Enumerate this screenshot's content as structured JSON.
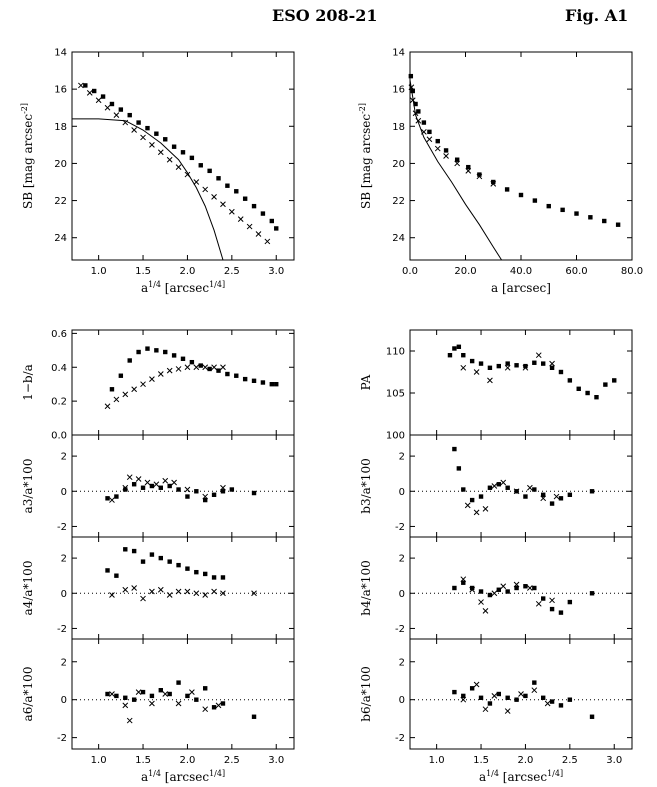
{
  "header": {
    "title": "ESO 208-21",
    "figure_label": "Fig. A1"
  },
  "chart_data": [
    {
      "id": "sb_vs_a14",
      "type": "scatter",
      "title": "",
      "xlabel": "a^1/4 [arcsec^1/4]",
      "ylabel": "SB [mag arcsec^-2]",
      "xlim": [
        0.7,
        3.2
      ],
      "ylim": [
        25.2,
        14
      ],
      "xticks": [
        "1.0",
        "1.5",
        "2.0",
        "2.5",
        "3.0"
      ],
      "yticks": [
        "14",
        "16",
        "18",
        "20",
        "22",
        "24"
      ],
      "series": [
        {
          "marker": "square",
          "x": [
            0.85,
            0.95,
            1.05,
            1.15,
            1.25,
            1.35,
            1.45,
            1.55,
            1.65,
            1.75,
            1.85,
            1.95,
            2.05,
            2.15,
            2.25,
            2.35,
            2.45,
            2.55,
            2.65,
            2.75,
            2.85,
            2.95,
            3.0
          ],
          "y": [
            15.8,
            16.1,
            16.4,
            16.8,
            17.1,
            17.4,
            17.8,
            18.1,
            18.4,
            18.7,
            19.1,
            19.4,
            19.7,
            20.1,
            20.4,
            20.8,
            21.2,
            21.5,
            21.9,
            22.3,
            22.7,
            23.1,
            23.5
          ]
        },
        {
          "marker": "cross",
          "x": [
            0.8,
            0.9,
            1.0,
            1.1,
            1.2,
            1.3,
            1.4,
            1.5,
            1.6,
            1.7,
            1.8,
            1.9,
            2.0,
            2.1,
            2.2,
            2.3,
            2.4,
            2.5,
            2.6,
            2.7,
            2.8,
            2.9
          ],
          "y": [
            15.8,
            16.2,
            16.6,
            17.0,
            17.4,
            17.8,
            18.2,
            18.6,
            19.0,
            19.4,
            19.8,
            20.2,
            20.6,
            21.0,
            21.4,
            21.8,
            22.2,
            22.6,
            23.0,
            23.4,
            23.8,
            24.2
          ]
        },
        {
          "marker": "line",
          "x": [
            0.7,
            1.0,
            1.3,
            1.5,
            1.7,
            1.9,
            2.0,
            2.1,
            2.2,
            2.3,
            2.4
          ],
          "y": [
            17.6,
            17.6,
            17.7,
            18.2,
            18.9,
            19.8,
            20.5,
            21.3,
            22.3,
            23.6,
            25.2
          ]
        }
      ]
    },
    {
      "id": "sb_vs_a",
      "type": "scatter",
      "title": "",
      "xlabel": "a [arcsec]",
      "ylabel": "SB [mag arcsec^-2]",
      "xlim": [
        0,
        80
      ],
      "ylim": [
        25.2,
        14
      ],
      "xticks": [
        "0.0",
        "20.0",
        "40.0",
        "60.0",
        "80.0"
      ],
      "yticks": [
        "14",
        "16",
        "18",
        "20",
        "22",
        "24"
      ],
      "series": [
        {
          "marker": "square",
          "x": [
            0.3,
            1,
            2,
            3,
            5,
            7,
            10,
            13,
            17,
            21,
            25,
            30,
            35,
            40,
            45,
            50,
            55,
            60,
            65,
            70,
            75
          ],
          "y": [
            15.3,
            16.1,
            16.8,
            17.2,
            17.8,
            18.3,
            18.8,
            19.3,
            19.8,
            20.2,
            20.6,
            21.0,
            21.4,
            21.7,
            22.0,
            22.3,
            22.5,
            22.7,
            22.9,
            23.1,
            23.3
          ]
        },
        {
          "marker": "cross",
          "x": [
            0.5,
            1,
            2,
            3,
            5,
            7,
            10,
            13,
            17,
            21,
            25,
            30
          ],
          "y": [
            15.9,
            16.6,
            17.3,
            17.7,
            18.3,
            18.7,
            19.2,
            19.6,
            20.0,
            20.4,
            20.7,
            21.1
          ]
        },
        {
          "marker": "line",
          "x": [
            0,
            2,
            5,
            10,
            15,
            20,
            25,
            30,
            33
          ],
          "y": [
            15.5,
            17.4,
            18.6,
            19.9,
            21.0,
            22.2,
            23.3,
            24.5,
            25.2
          ]
        }
      ]
    },
    {
      "id": "ellipticity",
      "type": "scatter",
      "title": "",
      "xlabel": "",
      "ylabel": "1−b/a",
      "xlim": [
        0.7,
        3.2
      ],
      "ylim": [
        0,
        0.62
      ],
      "yticks": [
        "0.0",
        "0.2",
        "0.4",
        "0.6"
      ],
      "series": [
        {
          "marker": "square",
          "x": [
            1.15,
            1.25,
            1.35,
            1.45,
            1.55,
            1.65,
            1.75,
            1.85,
            1.95,
            2.05,
            2.15,
            2.25,
            2.35,
            2.45,
            2.55,
            2.65,
            2.75,
            2.85,
            2.95,
            3.0
          ],
          "y": [
            0.27,
            0.35,
            0.44,
            0.49,
            0.51,
            0.5,
            0.49,
            0.47,
            0.45,
            0.43,
            0.41,
            0.39,
            0.38,
            0.36,
            0.35,
            0.33,
            0.32,
            0.31,
            0.3,
            0.3
          ]
        },
        {
          "marker": "cross",
          "x": [
            1.1,
            1.2,
            1.3,
            1.4,
            1.5,
            1.6,
            1.7,
            1.8,
            1.9,
            2.0,
            2.1,
            2.2,
            2.3,
            2.4
          ],
          "y": [
            0.17,
            0.21,
            0.24,
            0.27,
            0.3,
            0.33,
            0.36,
            0.38,
            0.39,
            0.4,
            0.4,
            0.4,
            0.4,
            0.4
          ]
        }
      ]
    },
    {
      "id": "pa",
      "type": "scatter",
      "title": "",
      "xlabel": "",
      "ylabel": "PA",
      "xlim": [
        0.7,
        3.2
      ],
      "ylim": [
        100,
        112.5
      ],
      "yticks": [
        "100",
        "105",
        "110"
      ],
      "series": [
        {
          "marker": "square",
          "x": [
            1.15,
            1.2,
            1.25,
            1.3,
            1.4,
            1.5,
            1.6,
            1.7,
            1.8,
            1.9,
            2.0,
            2.1,
            2.2,
            2.3,
            2.4,
            2.5,
            2.6,
            2.7,
            2.8,
            2.9,
            3.0
          ],
          "y": [
            109.5,
            110.3,
            110.5,
            109.5,
            108.8,
            108.5,
            108.0,
            108.2,
            108.5,
            108.3,
            108.2,
            108.6,
            108.5,
            108.0,
            107.5,
            106.5,
            105.5,
            105.0,
            104.5,
            106.0,
            106.5
          ]
        },
        {
          "marker": "cross",
          "x": [
            1.3,
            1.45,
            1.6,
            1.8,
            2.0,
            2.15,
            2.3
          ],
          "y": [
            108.0,
            107.5,
            106.5,
            108.0,
            108.0,
            109.5,
            108.5
          ]
        }
      ]
    },
    {
      "id": "a3",
      "type": "scatter",
      "title": "",
      "xlabel": "",
      "ylabel": "a3/a*100",
      "xlim": [
        0.7,
        3.2
      ],
      "ylim": [
        -2.6,
        3.2
      ],
      "yticks": [
        "-2",
        "0",
        "2"
      ],
      "series": [
        {
          "marker": "square",
          "x": [
            1.1,
            1.2,
            1.3,
            1.4,
            1.5,
            1.6,
            1.7,
            1.8,
            1.9,
            2.0,
            2.1,
            2.2,
            2.3,
            2.4,
            2.5,
            2.75
          ],
          "y": [
            -0.4,
            -0.3,
            0.1,
            0.4,
            0.2,
            0.3,
            0.2,
            0.3,
            0.1,
            -0.3,
            0.0,
            -0.5,
            -0.2,
            0.0,
            0.1,
            -0.1
          ]
        },
        {
          "marker": "cross",
          "x": [
            1.15,
            1.3,
            1.35,
            1.45,
            1.55,
            1.65,
            1.75,
            1.85,
            2.0,
            2.2,
            2.4
          ],
          "y": [
            -0.5,
            0.2,
            0.8,
            0.7,
            0.5,
            0.4,
            0.6,
            0.5,
            0.1,
            -0.3,
            0.2
          ]
        }
      ]
    },
    {
      "id": "b3",
      "type": "scatter",
      "title": "",
      "xlabel": "",
      "ylabel": "b3/a*100",
      "xlim": [
        0.7,
        3.2
      ],
      "ylim": [
        -2.6,
        3.2
      ],
      "yticks": [
        "-2",
        "0",
        "2"
      ],
      "series": [
        {
          "marker": "square",
          "x": [
            1.2,
            1.25,
            1.3,
            1.4,
            1.5,
            1.6,
            1.7,
            1.8,
            1.9,
            2.0,
            2.1,
            2.2,
            2.3,
            2.4,
            2.5,
            2.75
          ],
          "y": [
            2.4,
            1.3,
            0.1,
            -0.5,
            -0.3,
            0.2,
            0.4,
            0.2,
            0.0,
            -0.3,
            0.1,
            -0.2,
            -0.7,
            -0.4,
            -0.2,
            0.0
          ]
        },
        {
          "marker": "cross",
          "x": [
            1.35,
            1.45,
            1.55,
            1.65,
            1.75,
            1.9,
            2.05,
            2.2,
            2.35
          ],
          "y": [
            -0.8,
            -1.2,
            -1.0,
            0.3,
            0.5,
            0.0,
            0.2,
            -0.4,
            -0.3
          ]
        }
      ]
    },
    {
      "id": "a4",
      "type": "scatter",
      "title": "",
      "xlabel": "",
      "ylabel": "a4/a*100",
      "xlim": [
        0.7,
        3.2
      ],
      "ylim": [
        -2.6,
        3.2
      ],
      "yticks": [
        "-2",
        "0",
        "2"
      ],
      "series": [
        {
          "marker": "square",
          "x": [
            1.1,
            1.2,
            1.3,
            1.4,
            1.5,
            1.6,
            1.7,
            1.8,
            1.9,
            2.0,
            2.1,
            2.2,
            2.3,
            2.4
          ],
          "y": [
            1.3,
            1.0,
            2.5,
            2.4,
            1.8,
            2.2,
            2.0,
            1.8,
            1.6,
            1.4,
            1.2,
            1.1,
            0.9,
            0.9
          ]
        },
        {
          "marker": "cross",
          "x": [
            1.15,
            1.3,
            1.4,
            1.5,
            1.6,
            1.7,
            1.8,
            1.9,
            2.0,
            2.1,
            2.2,
            2.3,
            2.4,
            2.75
          ],
          "y": [
            -0.1,
            0.2,
            0.3,
            -0.3,
            0.1,
            0.2,
            -0.1,
            0.1,
            0.1,
            0.0,
            -0.1,
            0.1,
            0.0,
            0.0
          ]
        }
      ]
    },
    {
      "id": "b4",
      "type": "scatter",
      "title": "",
      "xlabel": "",
      "ylabel": "b4/a*100",
      "xlim": [
        0.7,
        3.2
      ],
      "ylim": [
        -2.6,
        3.2
      ],
      "yticks": [
        "-2",
        "0",
        "2"
      ],
      "series": [
        {
          "marker": "square",
          "x": [
            1.2,
            1.3,
            1.4,
            1.5,
            1.6,
            1.7,
            1.8,
            1.9,
            2.0,
            2.1,
            2.2,
            2.3,
            2.4,
            2.5,
            2.75
          ],
          "y": [
            0.3,
            0.6,
            0.3,
            0.1,
            -0.1,
            0.2,
            0.1,
            0.3,
            0.4,
            0.3,
            -0.3,
            -0.9,
            -1.1,
            -0.5,
            0.0
          ]
        },
        {
          "marker": "cross",
          "x": [
            1.3,
            1.4,
            1.5,
            1.55,
            1.65,
            1.75,
            1.9,
            2.05,
            2.15,
            2.3
          ],
          "y": [
            0.8,
            0.2,
            -0.5,
            -1.0,
            0.0,
            0.4,
            0.5,
            0.3,
            -0.6,
            -0.4
          ]
        }
      ]
    },
    {
      "id": "a6",
      "type": "scatter",
      "title": "",
      "xlabel": "a^1/4 [arcsec^1/4]",
      "ylabel": "a6/a*100",
      "xlim": [
        0.7,
        3.2
      ],
      "ylim": [
        -2.6,
        3.2
      ],
      "xticks": [
        "1.0",
        "1.5",
        "2.0",
        "2.5",
        "3.0"
      ],
      "yticks": [
        "-2",
        "0",
        "2"
      ],
      "series": [
        {
          "marker": "square",
          "x": [
            1.1,
            1.2,
            1.3,
            1.4,
            1.5,
            1.6,
            1.7,
            1.8,
            1.9,
            2.0,
            2.1,
            2.2,
            2.3,
            2.4,
            2.75
          ],
          "y": [
            0.3,
            0.2,
            0.1,
            0.0,
            0.4,
            0.2,
            0.5,
            0.3,
            0.9,
            0.2,
            0.0,
            0.6,
            -0.4,
            -0.2,
            -0.9
          ]
        },
        {
          "marker": "cross",
          "x": [
            1.15,
            1.3,
            1.35,
            1.45,
            1.6,
            1.75,
            1.9,
            2.05,
            2.2,
            2.35
          ],
          "y": [
            0.3,
            -0.3,
            -1.1,
            0.4,
            -0.2,
            0.3,
            -0.2,
            0.4,
            -0.5,
            -0.3
          ]
        }
      ]
    },
    {
      "id": "b6",
      "type": "scatter",
      "title": "",
      "xlabel": "a^1/4 [arcsec^1/4]",
      "ylabel": "b6/a*100",
      "xlim": [
        0.7,
        3.2
      ],
      "ylim": [
        -2.6,
        3.2
      ],
      "xticks": [
        "1.0",
        "1.5",
        "2.0",
        "2.5",
        "3.0"
      ],
      "yticks": [
        "-2",
        "0",
        "2"
      ],
      "series": [
        {
          "marker": "square",
          "x": [
            1.2,
            1.3,
            1.4,
            1.5,
            1.6,
            1.7,
            1.8,
            1.9,
            2.0,
            2.1,
            2.2,
            2.3,
            2.4,
            2.5,
            2.75
          ],
          "y": [
            0.4,
            0.2,
            0.6,
            0.1,
            -0.2,
            0.3,
            0.1,
            0.0,
            0.2,
            0.9,
            0.1,
            -0.1,
            -0.3,
            0.0,
            -0.9
          ]
        },
        {
          "marker": "cross",
          "x": [
            1.3,
            1.45,
            1.55,
            1.65,
            1.8,
            1.95,
            2.1,
            2.25
          ],
          "y": [
            0.0,
            0.8,
            -0.5,
            0.2,
            -0.6,
            0.3,
            0.5,
            -0.2
          ]
        }
      ]
    }
  ]
}
